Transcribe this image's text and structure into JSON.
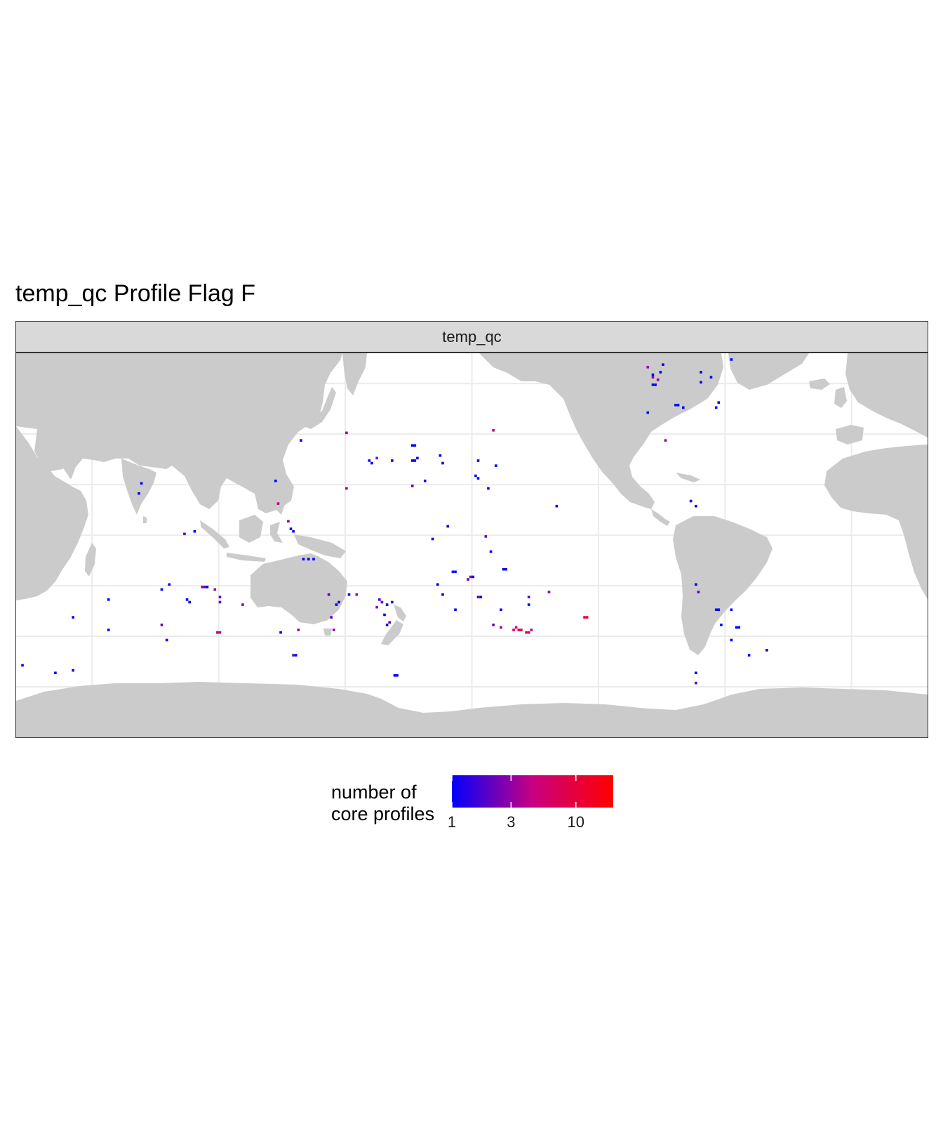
{
  "title": "temp_qc Profile Flag F",
  "facet": {
    "strip_label": "temp_qc"
  },
  "legend": {
    "title_line1": "number of",
    "title_line2": "core profiles",
    "scale": "log10",
    "range": [
      1,
      20
    ],
    "ticks": [
      "1",
      "3",
      "10"
    ],
    "colors": {
      "low": "#0000ff",
      "mid": "#c80080",
      "high": "#ff0000"
    }
  },
  "colors": {
    "land": "#cbcbcb",
    "ocean": "#ffffff",
    "grid": "#ebebeb",
    "strip_bg": "#d9d9d9",
    "border": "#333333"
  },
  "chart_data": {
    "type": "heatmap",
    "projection": "equirectangular",
    "xlim": [
      20,
      380
    ],
    "ylim": [
      -80,
      72
    ],
    "grid_longitudes": [
      50,
      100,
      150,
      200,
      250,
      300,
      350
    ],
    "grid_latitudes": [
      -60,
      -40,
      -20,
      0,
      20,
      40,
      60
    ],
    "cells": [
      {
        "lon": 22,
        "lat": -52,
        "n": 1
      },
      {
        "lon": 35,
        "lat": -55,
        "n": 1
      },
      {
        "lon": 42,
        "lat": -54,
        "n": 1
      },
      {
        "lon": 42,
        "lat": -33,
        "n": 1
      },
      {
        "lon": 56,
        "lat": -38,
        "n": 1
      },
      {
        "lon": 56,
        "lat": -26,
        "n": 1
      },
      {
        "lon": 68,
        "lat": 16,
        "n": 1
      },
      {
        "lon": 69,
        "lat": 20,
        "n": 1
      },
      {
        "lon": 77,
        "lat": -36,
        "n": 2
      },
      {
        "lon": 77,
        "lat": -22,
        "n": 1
      },
      {
        "lon": 79,
        "lat": -42,
        "n": 1
      },
      {
        "lon": 80,
        "lat": -20,
        "n": 1
      },
      {
        "lon": 86,
        "lat": 0,
        "n": 2
      },
      {
        "lon": 87,
        "lat": -26,
        "n": 1
      },
      {
        "lon": 88,
        "lat": -27,
        "n": 1
      },
      {
        "lon": 90,
        "lat": 1,
        "n": 1
      },
      {
        "lon": 93,
        "lat": -21,
        "n": 3
      },
      {
        "lon": 94,
        "lat": -21,
        "n": 2
      },
      {
        "lon": 95,
        "lat": -21,
        "n": 1
      },
      {
        "lon": 98,
        "lat": -22,
        "n": 3
      },
      {
        "lon": 99,
        "lat": -39,
        "n": 4
      },
      {
        "lon": 100,
        "lat": -39,
        "n": 5
      },
      {
        "lon": 100,
        "lat": -25,
        "n": 2
      },
      {
        "lon": 100,
        "lat": -27,
        "n": 2
      },
      {
        "lon": 109,
        "lat": -28,
        "n": 3
      },
      {
        "lon": 122,
        "lat": 21,
        "n": 1
      },
      {
        "lon": 123,
        "lat": 12,
        "n": 4
      },
      {
        "lon": 124,
        "lat": -39,
        "n": 1
      },
      {
        "lon": 127,
        "lat": 5,
        "n": 3
      },
      {
        "lon": 128,
        "lat": 2,
        "n": 1
      },
      {
        "lon": 129,
        "lat": 1,
        "n": 1
      },
      {
        "lon": 129,
        "lat": -48,
        "n": 2
      },
      {
        "lon": 130,
        "lat": -48,
        "n": 1
      },
      {
        "lon": 131,
        "lat": -38,
        "n": 3
      },
      {
        "lon": 132,
        "lat": 37,
        "n": 1
      },
      {
        "lon": 133,
        "lat": -10,
        "n": 1
      },
      {
        "lon": 135,
        "lat": -10,
        "n": 1
      },
      {
        "lon": 137,
        "lat": -10,
        "n": 1
      },
      {
        "lon": 143,
        "lat": -24,
        "n": 2
      },
      {
        "lon": 144,
        "lat": -33,
        "n": 2
      },
      {
        "lon": 145,
        "lat": -38,
        "n": 3
      },
      {
        "lon": 146,
        "lat": -28,
        "n": 1
      },
      {
        "lon": 147,
        "lat": -27,
        "n": 1
      },
      {
        "lon": 150,
        "lat": 40,
        "n": 3
      },
      {
        "lon": 150,
        "lat": 18,
        "n": 3
      },
      {
        "lon": 151,
        "lat": -24,
        "n": 1
      },
      {
        "lon": 154,
        "lat": -24,
        "n": 3
      },
      {
        "lon": 159,
        "lat": 29,
        "n": 1
      },
      {
        "lon": 160,
        "lat": 28,
        "n": 1
      },
      {
        "lon": 162,
        "lat": 30,
        "n": 3
      },
      {
        "lon": 162,
        "lat": -29,
        "n": 3
      },
      {
        "lon": 163,
        "lat": -26,
        "n": 2
      },
      {
        "lon": 164,
        "lat": -27,
        "n": 2
      },
      {
        "lon": 166,
        "lat": -28,
        "n": 1
      },
      {
        "lon": 165,
        "lat": -32,
        "n": 1
      },
      {
        "lon": 166,
        "lat": -36,
        "n": 1
      },
      {
        "lon": 167,
        "lat": -35,
        "n": 2
      },
      {
        "lon": 168,
        "lat": -27,
        "n": 1
      },
      {
        "lon": 168,
        "lat": 29,
        "n": 1
      },
      {
        "lon": 169,
        "lat": -56,
        "n": 1
      },
      {
        "lon": 170,
        "lat": -56,
        "n": 1
      },
      {
        "lon": 176,
        "lat": 35,
        "n": 1
      },
      {
        "lon": 177,
        "lat": 35,
        "n": 1
      },
      {
        "lon": 176,
        "lat": 29,
        "n": 1
      },
      {
        "lon": 177,
        "lat": 29,
        "n": 1
      },
      {
        "lon": 178,
        "lat": 30,
        "n": 1
      },
      {
        "lon": 176,
        "lat": 19,
        "n": 2
      },
      {
        "lon": 181,
        "lat": 21,
        "n": 1
      },
      {
        "lon": 187,
        "lat": 31,
        "n": 1
      },
      {
        "lon": 188,
        "lat": 28,
        "n": 1
      },
      {
        "lon": 190,
        "lat": 3,
        "n": 1
      },
      {
        "lon": 184,
        "lat": -2,
        "n": 1
      },
      {
        "lon": 186,
        "lat": -20,
        "n": 1
      },
      {
        "lon": 188,
        "lat": -24,
        "n": 1
      },
      {
        "lon": 192,
        "lat": -15,
        "n": 1
      },
      {
        "lon": 193,
        "lat": -15,
        "n": 1
      },
      {
        "lon": 193,
        "lat": -30,
        "n": 1
      },
      {
        "lon": 199,
        "lat": -17,
        "n": 3
      },
      {
        "lon": 198,
        "lat": -18,
        "n": 2
      },
      {
        "lon": 200,
        "lat": -17,
        "n": 1
      },
      {
        "lon": 201,
        "lat": 23,
        "n": 1
      },
      {
        "lon": 202,
        "lat": 22,
        "n": 1
      },
      {
        "lon": 202,
        "lat": 29,
        "n": 1
      },
      {
        "lon": 202,
        "lat": -25,
        "n": 2
      },
      {
        "lon": 203,
        "lat": -25,
        "n": 1
      },
      {
        "lon": 205,
        "lat": -1,
        "n": 2
      },
      {
        "lon": 206,
        "lat": 18,
        "n": 1
      },
      {
        "lon": 207,
        "lat": -7,
        "n": 1
      },
      {
        "lon": 208,
        "lat": 41,
        "n": 4
      },
      {
        "lon": 208,
        "lat": -36,
        "n": 2
      },
      {
        "lon": 209,
        "lat": 27,
        "n": 1
      },
      {
        "lon": 211,
        "lat": -37,
        "n": 3
      },
      {
        "lon": 211,
        "lat": -30,
        "n": 1
      },
      {
        "lon": 212,
        "lat": -14,
        "n": 1
      },
      {
        "lon": 213,
        "lat": -14,
        "n": 1
      },
      {
        "lon": 216,
        "lat": -38,
        "n": 5
      },
      {
        "lon": 217,
        "lat": -37,
        "n": 7
      },
      {
        "lon": 218,
        "lat": -38,
        "n": 10
      },
      {
        "lon": 219,
        "lat": -38,
        "n": 9
      },
      {
        "lon": 221,
        "lat": -39,
        "n": 8
      },
      {
        "lon": 222,
        "lat": -39,
        "n": 6
      },
      {
        "lon": 223,
        "lat": -38,
        "n": 4
      },
      {
        "lon": 222,
        "lat": -25,
        "n": 2
      },
      {
        "lon": 222,
        "lat": -28,
        "n": 1
      },
      {
        "lon": 230,
        "lat": -23,
        "n": 3
      },
      {
        "lon": 233,
        "lat": 11,
        "n": 1
      },
      {
        "lon": 244,
        "lat": -33,
        "n": 8
      },
      {
        "lon": 245,
        "lat": -33,
        "n": 12
      },
      {
        "lon": 269,
        "lat": 48,
        "n": 1
      },
      {
        "lon": 269,
        "lat": 66,
        "n": 3
      },
      {
        "lon": 271,
        "lat": 62,
        "n": 3
      },
      {
        "lon": 271,
        "lat": 63,
        "n": 1
      },
      {
        "lon": 271,
        "lat": 59,
        "n": 1
      },
      {
        "lon": 272,
        "lat": 59,
        "n": 1
      },
      {
        "lon": 273,
        "lat": 61,
        "n": 3
      },
      {
        "lon": 274,
        "lat": 64,
        "n": 1
      },
      {
        "lon": 275,
        "lat": 67,
        "n": 1
      },
      {
        "lon": 276,
        "lat": 37,
        "n": 3
      },
      {
        "lon": 280,
        "lat": 51,
        "n": 1
      },
      {
        "lon": 281,
        "lat": 51,
        "n": 1
      },
      {
        "lon": 283,
        "lat": 50,
        "n": 1
      },
      {
        "lon": 286,
        "lat": 13,
        "n": 1
      },
      {
        "lon": 288,
        "lat": 11,
        "n": 1
      },
      {
        "lon": 288,
        "lat": -20,
        "n": 1
      },
      {
        "lon": 289,
        "lat": -23,
        "n": 2
      },
      {
        "lon": 288,
        "lat": -55,
        "n": 1
      },
      {
        "lon": 288,
        "lat": -59,
        "n": 2
      },
      {
        "lon": 290,
        "lat": 64,
        "n": 1
      },
      {
        "lon": 294,
        "lat": 62,
        "n": 1
      },
      {
        "lon": 290,
        "lat": 60,
        "n": 1
      },
      {
        "lon": 296,
        "lat": 50,
        "n": 1
      },
      {
        "lon": 297,
        "lat": 52,
        "n": 1
      },
      {
        "lon": 302,
        "lat": 69,
        "n": 1
      },
      {
        "lon": 296,
        "lat": -30,
        "n": 1
      },
      {
        "lon": 297,
        "lat": -30,
        "n": 1
      },
      {
        "lon": 302,
        "lat": -30,
        "n": 1
      },
      {
        "lon": 298,
        "lat": -36,
        "n": 1
      },
      {
        "lon": 302,
        "lat": -42,
        "n": 1
      },
      {
        "lon": 304,
        "lat": -37,
        "n": 1
      },
      {
        "lon": 305,
        "lat": -37,
        "n": 1
      },
      {
        "lon": 309,
        "lat": -48,
        "n": 1
      },
      {
        "lon": 316,
        "lat": -46,
        "n": 1
      }
    ]
  }
}
